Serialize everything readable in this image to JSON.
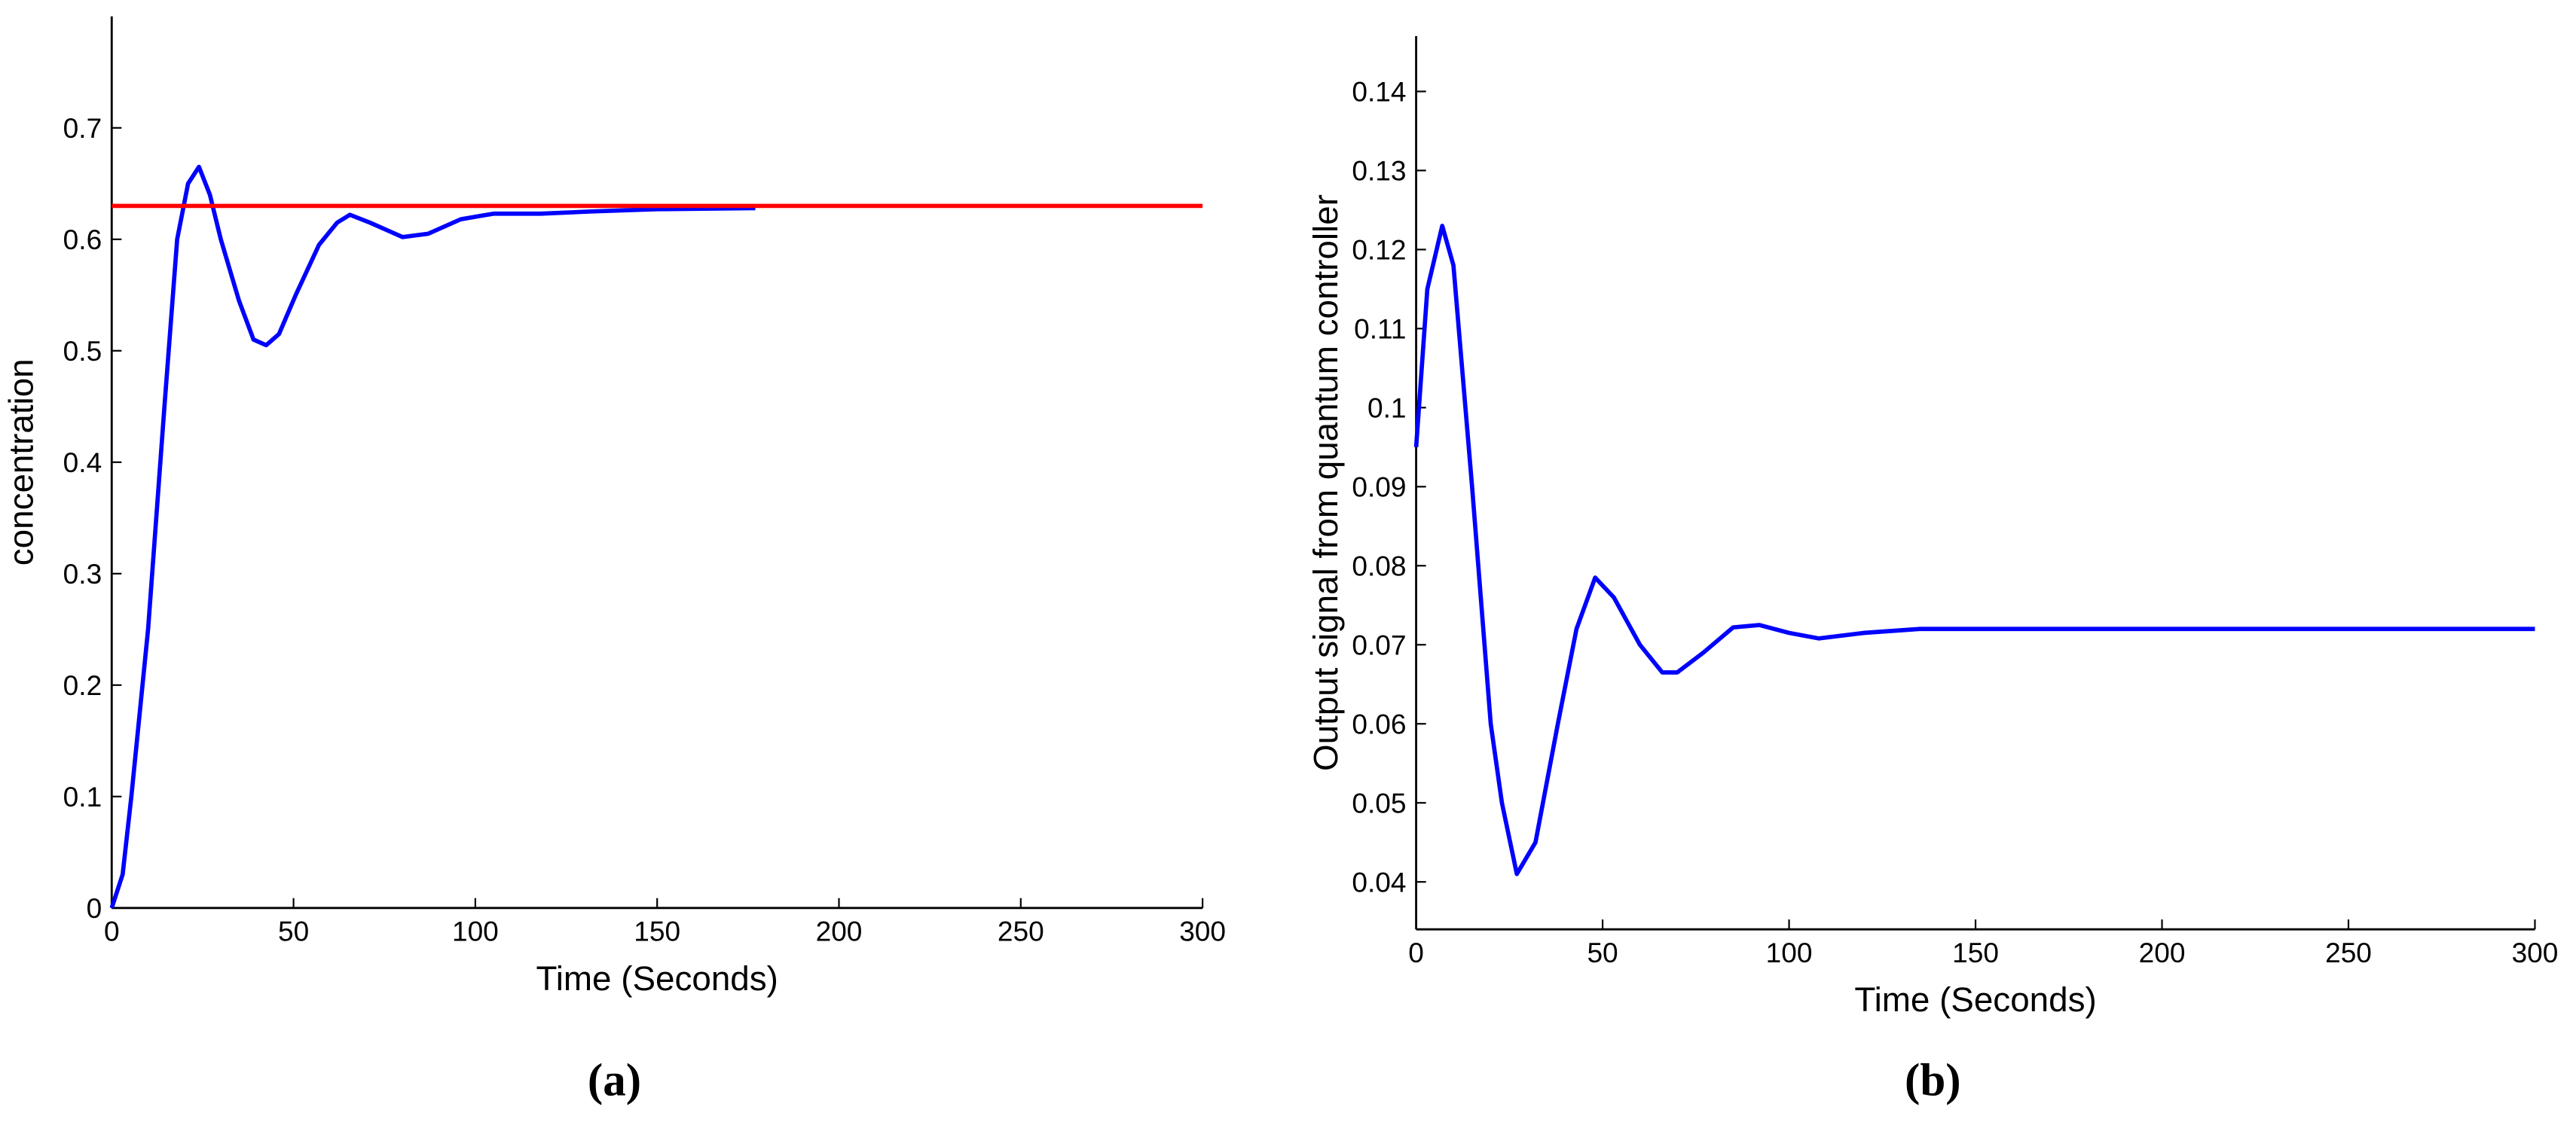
{
  "chart_data": [
    {
      "type": "line",
      "caption": "(a)",
      "xlabel": "Time (Seconds)",
      "ylabel": "concentration",
      "xlim": [
        0,
        300
      ],
      "ylim": [
        0,
        0.8
      ],
      "xticks": [
        0,
        50,
        100,
        150,
        200,
        250,
        300
      ],
      "yticks": [
        0,
        0.1,
        0.2,
        0.3,
        0.4,
        0.5,
        0.6,
        0.7
      ],
      "series": [
        {
          "color": "#0000ff",
          "x": [
            0,
            3,
            5.4,
            10,
            14.5,
            18,
            21,
            24,
            27,
            30,
            35,
            39,
            42.5,
            46,
            50.6,
            57,
            62,
            65.5,
            71,
            80,
            87,
            96,
            105,
            118,
            132,
            150,
            177
          ],
          "values": [
            0,
            0.03,
            0.1,
            0.25,
            0.45,
            0.6,
            0.65,
            0.665,
            0.64,
            0.6,
            0.545,
            0.51,
            0.505,
            0.515,
            0.55,
            0.595,
            0.615,
            0.622,
            0.615,
            0.602,
            0.605,
            0.618,
            0.623,
            0.623,
            0.625,
            0.627,
            0.628
          ]
        },
        {
          "color": "#ff0000",
          "x": [
            0,
            300
          ],
          "values": [
            0.63,
            0.63
          ]
        }
      ]
    },
    {
      "type": "line",
      "caption": "(b)",
      "xlabel": "Time (Seconds)",
      "ylabel": "Output signal from quantum controller",
      "xlim": [
        0,
        300
      ],
      "ylim": [
        0.034,
        0.147
      ],
      "xticks": [
        0,
        50,
        100,
        150,
        200,
        250,
        300
      ],
      "yticks": [
        0.04,
        0.05,
        0.06,
        0.07,
        0.08,
        0.09,
        0.1,
        0.11,
        0.12,
        0.13,
        0.14
      ],
      "series": [
        {
          "color": "#0000ff",
          "x": [
            0,
            3,
            7,
            10,
            15,
            20,
            23,
            27,
            32,
            38,
            43,
            48,
            53,
            60,
            66,
            70,
            77,
            85,
            92,
            100,
            108,
            120,
            135,
            165,
            300
          ],
          "values": [
            0.095,
            0.115,
            0.123,
            0.118,
            0.09,
            0.06,
            0.05,
            0.041,
            0.045,
            0.06,
            0.072,
            0.0785,
            0.076,
            0.07,
            0.0665,
            0.0665,
            0.069,
            0.0722,
            0.0725,
            0.0715,
            0.0708,
            0.0715,
            0.072,
            0.072,
            0.072
          ]
        }
      ]
    }
  ]
}
